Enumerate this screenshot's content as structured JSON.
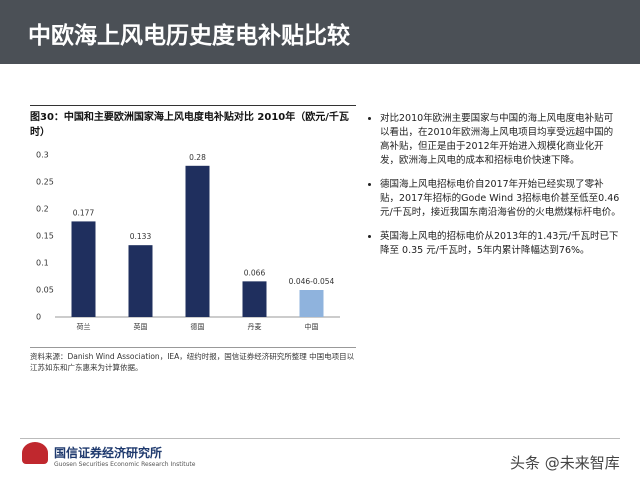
{
  "header": {
    "title": "中欧海上风电历史度电补贴比较"
  },
  "chart_data": {
    "type": "bar",
    "title": "图30：中国和主要欧洲国家海上风电度电补贴对比 2010年（欧元/千瓦时）",
    "categories": [
      "荷兰",
      "英国",
      "德国",
      "丹麦",
      "中国"
    ],
    "values": [
      0.177,
      0.133,
      0.28,
      0.066,
      0.05
    ],
    "value_labels": [
      "0.177",
      "0.133",
      "0.28",
      "0.066",
      "0.046-0.054"
    ],
    "colors": [
      "#1f2f5e",
      "#1f2f5e",
      "#1f2f5e",
      "#1f2f5e",
      "#8fb3dd"
    ],
    "ylim": [
      0,
      0.3
    ],
    "yticks": [
      0,
      0.05,
      0.1,
      0.15,
      0.2,
      0.25,
      0.3
    ],
    "grid": false
  },
  "source": "资料来源：Danish Wind Association，IEA，纽约时报，国信证券经济研究所整理 中国电项目以江苏如东和广东惠来为计算依据。",
  "bullets": [
    "对比2010年欧洲主要国家与中国的海上风电度电补贴可以看出，在2010年欧洲海上风电项目均享受远超中国的高补贴，但正是由于2012年开始进入规模化商业化开发，欧洲海上风电的成本和招标电价快速下降。",
    "德国海上风电招标电价自2017年开始已经实现了零补贴，2017年招标的Gode Wind 3招标电价甚至低至0.46元/千瓦时，接近我国东南沿海省份的火电燃煤标杆电价。",
    "英国海上风电的招标电价从2013年的1.43元/千瓦时已下降至 0.35 元/千瓦时，5年内累计降幅达到76%。"
  ],
  "footer": {
    "org": "国信证券经济研究所",
    "org_en": "Guosen Securities Economic Research Institute",
    "watermark": "头条 @未来智库"
  }
}
